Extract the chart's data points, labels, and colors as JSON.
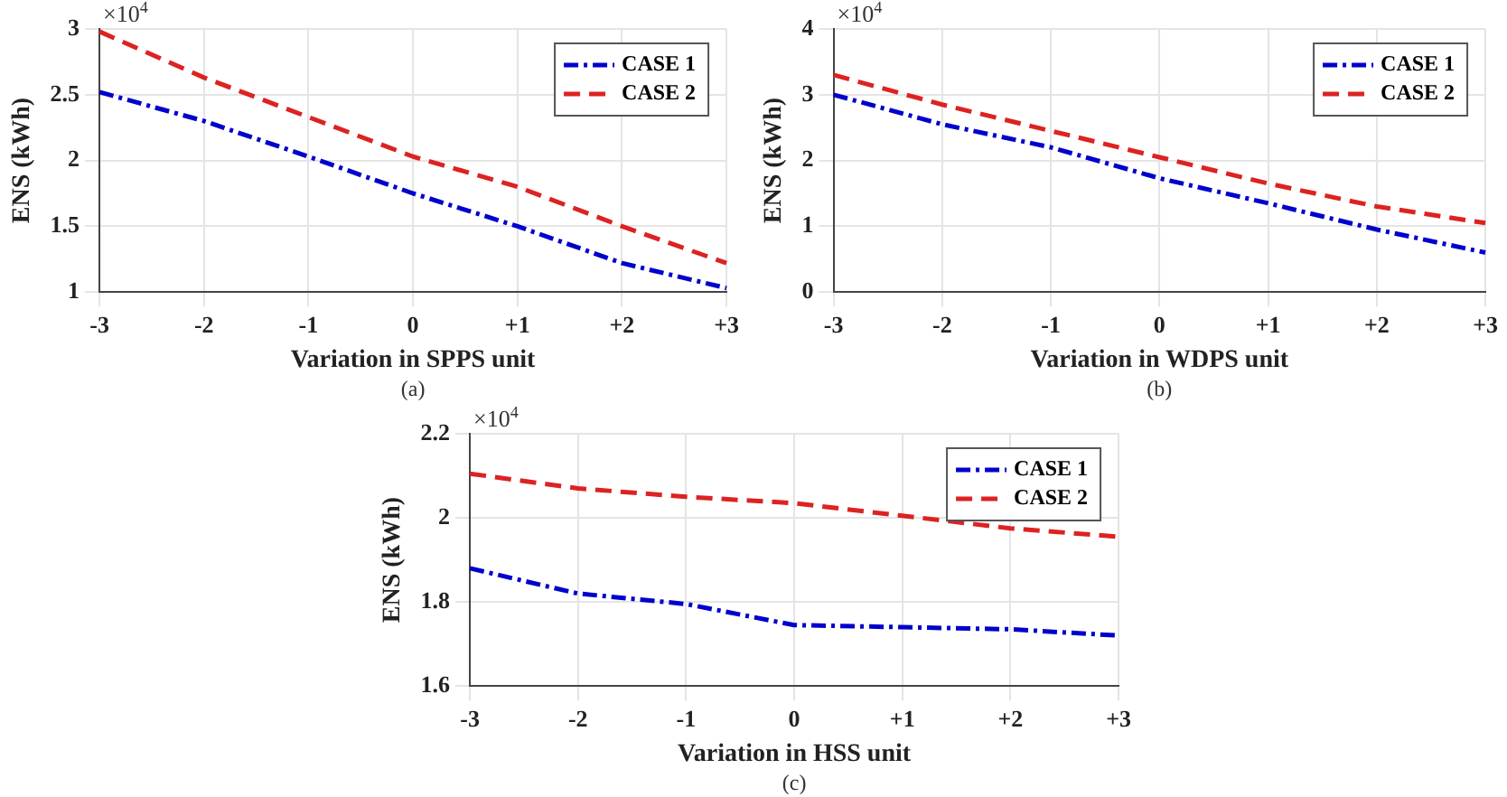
{
  "chart_data": [
    {
      "type": "line",
      "xlabel": "Variation in SPPS unit",
      "ylabel": "ENS (kWh)",
      "categories": [
        "-3",
        "-2",
        "-1",
        "0",
        "+1",
        "+2",
        "+3"
      ],
      "ylim": [
        1,
        3
      ],
      "yticks": [
        1,
        1.5,
        2,
        2.5,
        3
      ],
      "grid": true,
      "legend": "top right",
      "marker": "none",
      "annotations": [
        "×10$^{4}$",
        "(a)"
      ],
      "series": [
        {
          "name": "CASE 1",
          "color": "#0000cc",
          "line_style": "dashdot",
          "values": [
            2.52,
            2.3,
            2.03,
            1.75,
            1.5,
            1.22,
            1.03
          ]
        },
        {
          "name": "CASE 2",
          "color": "#dd2222",
          "line_style": "dashed",
          "values": [
            2.98,
            2.63,
            2.33,
            2.03,
            1.8,
            1.5,
            1.22
          ]
        }
      ]
    },
    {
      "type": "line",
      "xlabel": "Variation in WDPS unit",
      "ylabel": "ENS (kWh)",
      "categories": [
        "-3",
        "-2",
        "-1",
        "0",
        "+1",
        "+2",
        "+3"
      ],
      "ylim": [
        0,
        4
      ],
      "yticks": [
        0,
        1,
        2,
        3,
        4
      ],
      "grid": true,
      "legend": "top right",
      "marker": "none",
      "annotations": [
        "×10$^{4}$",
        "(b)"
      ],
      "series": [
        {
          "name": "CASE 1",
          "color": "#0000cc",
          "line_style": "dashdot",
          "values": [
            3.0,
            2.55,
            2.2,
            1.73,
            1.35,
            0.95,
            0.6
          ]
        },
        {
          "name": "CASE 2",
          "color": "#dd2222",
          "line_style": "dashed",
          "values": [
            3.3,
            2.85,
            2.45,
            2.05,
            1.65,
            1.3,
            1.05
          ]
        }
      ]
    },
    {
      "type": "line",
      "xlabel": "Variation in HSS unit",
      "ylabel": "ENS (kWh)",
      "categories": [
        "-3",
        "-2",
        "-1",
        "0",
        "+1",
        "+2",
        "+3"
      ],
      "ylim": [
        1.6,
        2.2
      ],
      "yticks": [
        1.6,
        1.8,
        2,
        2.2
      ],
      "grid": true,
      "legend": "top right",
      "marker": "none",
      "annotations": [
        "×10$^{4}$",
        "(c)"
      ],
      "series": [
        {
          "name": "CASE 1",
          "color": "#0000cc",
          "line_style": "dashdot",
          "values": [
            1.88,
            1.82,
            1.795,
            1.745,
            1.74,
            1.735,
            1.72
          ]
        },
        {
          "name": "CASE 2",
          "color": "#dd2222",
          "line_style": "dashed",
          "values": [
            2.105,
            2.07,
            2.05,
            2.035,
            2.005,
            1.975,
            1.955
          ]
        }
      ]
    }
  ]
}
